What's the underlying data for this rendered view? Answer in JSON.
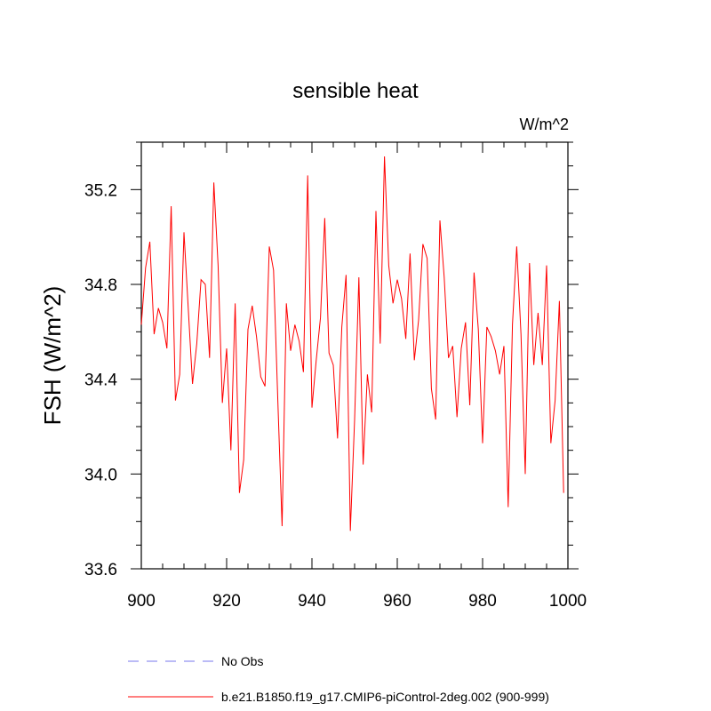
{
  "chart_data": {
    "type": "line",
    "title": "sensible heat",
    "units_label": "W/m^2",
    "xlabel": "",
    "ylabel": "FSH  (W/m^2)",
    "xlim": [
      900,
      1000
    ],
    "ylim": [
      33.6,
      35.4
    ],
    "x_ticks": [
      900,
      920,
      940,
      960,
      980,
      1000
    ],
    "x_tick_labels": [
      "900",
      "920",
      "940",
      "960",
      "980",
      "1000"
    ],
    "y_ticks": [
      33.6,
      34.0,
      34.4,
      34.8,
      35.2
    ],
    "y_tick_labels": [
      "33.6",
      "34.0",
      "34.4",
      "34.8",
      "35.2"
    ],
    "grid": false,
    "legend_position": "bottom",
    "legend": [
      {
        "label": "No Obs",
        "color": "#7777ee",
        "style": "dashed"
      },
      {
        "label": "b.e21.B1850.f19_g17.CMIP6-piControl-2deg.002 (900-999)",
        "color": "#ff0000",
        "style": "solid"
      }
    ],
    "series": [
      {
        "name": "b.e21.B1850.f19_g17.CMIP6-piControl-2deg.002 (900-999)",
        "color": "#ff0000",
        "x_start": 900,
        "values": [
          34.63,
          34.87,
          34.98,
          34.59,
          34.7,
          34.64,
          34.53,
          35.13,
          34.31,
          34.42,
          35.02,
          34.7,
          34.38,
          34.55,
          34.82,
          34.8,
          34.49,
          35.23,
          34.88,
          34.3,
          34.53,
          34.1,
          34.72,
          33.92,
          34.06,
          34.61,
          34.71,
          34.58,
          34.41,
          34.37,
          34.96,
          34.86,
          34.31,
          33.78,
          34.72,
          34.52,
          34.63,
          34.56,
          34.43,
          35.26,
          34.28,
          34.48,
          34.66,
          35.08,
          34.51,
          34.46,
          34.15,
          34.62,
          34.84,
          33.76,
          34.23,
          34.83,
          34.04,
          34.42,
          34.26,
          35.11,
          34.55,
          35.34,
          34.88,
          34.72,
          34.82,
          34.74,
          34.57,
          34.93,
          34.48,
          34.65,
          34.97,
          34.91,
          34.36,
          34.23,
          35.07,
          34.83,
          34.49,
          34.54,
          34.24,
          34.53,
          34.64,
          34.29,
          34.85,
          34.61,
          34.13,
          34.62,
          34.58,
          34.52,
          34.42,
          34.54,
          33.86,
          34.63,
          34.96,
          34.59,
          34.0,
          34.89,
          34.46,
          34.68,
          34.46,
          34.88,
          34.13,
          34.31,
          34.73,
          33.92
        ]
      }
    ]
  }
}
